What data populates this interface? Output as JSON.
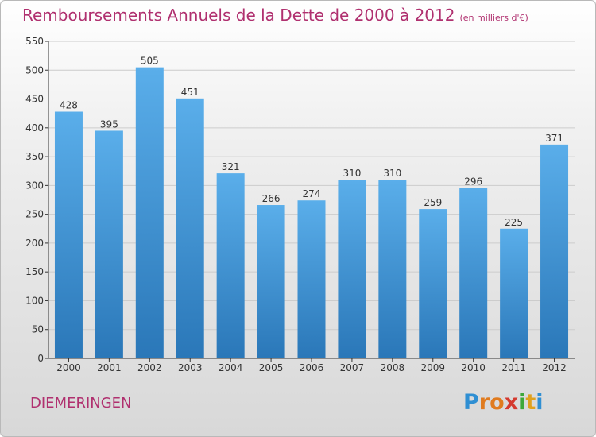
{
  "title": "Remboursements Annuels de la Dette de 2000 à 2012",
  "subtitle": "(en milliers d'€)",
  "city": "DIEMERINGEN",
  "logo": {
    "letters": [
      "P",
      "r",
      "o",
      "x",
      "i",
      "t",
      "i"
    ],
    "colors": [
      "#2f8fd3",
      "#e07b1f",
      "#e07b1f",
      "#d43a2f",
      "#3ea83a",
      "#e0a11f",
      "#2f8fd3"
    ]
  },
  "colors": {
    "bar_top": "#5aaeea",
    "bar_bottom": "#2a77b8",
    "title": "#b0306f",
    "axis": "#333333",
    "grid": "#cccccc"
  },
  "chart_data": {
    "type": "bar",
    "categories": [
      "2000",
      "2001",
      "2002",
      "2003",
      "2004",
      "2005",
      "2006",
      "2007",
      "2008",
      "2009",
      "2010",
      "2011",
      "2012"
    ],
    "values": [
      428,
      395,
      505,
      451,
      321,
      266,
      274,
      310,
      310,
      259,
      296,
      225,
      371
    ],
    "title": "Remboursements Annuels de la Dette de 2000 à 2012",
    "ylim": [
      0,
      550
    ],
    "yticks": [
      0,
      50,
      100,
      150,
      200,
      250,
      300,
      350,
      400,
      450,
      500,
      550
    ],
    "grid": true,
    "data_labels": true
  }
}
